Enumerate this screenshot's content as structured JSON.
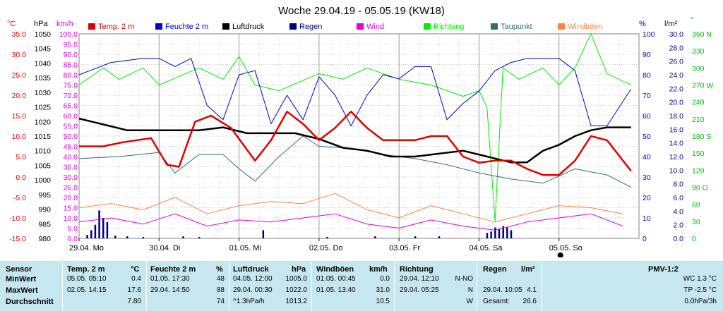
{
  "chart_data": {
    "type": "line",
    "title": "Woche 29.04.19 - 05.05.19 (KW18)",
    "axis_units": {
      "temp": "°C",
      "pressure": "hPa",
      "wind_kmh": "km/h",
      "humidity": "%",
      "rain": "l/m²",
      "direction": "°"
    },
    "axes": {
      "temp": {
        "min": -15,
        "max": 35,
        "ticks": [
          "35.0",
          "30.0",
          "25.0",
          "20.0",
          "15.0",
          "10.0",
          "5.0",
          "0.0",
          "-5.0",
          "-10.0",
          "-15.0"
        ]
      },
      "pressure": {
        "min": 980,
        "max": 1050,
        "ticks": [
          "1050",
          "1045",
          "1040",
          "1035",
          "1030",
          "1025",
          "1020",
          "1015",
          "1010",
          "1005",
          "1000",
          "995",
          "990",
          "985",
          "980"
        ]
      },
      "wind_kmh": {
        "min": 0,
        "max": 100,
        "ticks": [
          "100.0",
          "95.0",
          "90.0",
          "85.0",
          "80.0",
          "75.0",
          "70.0",
          "65.0",
          "60.0",
          "55.0",
          "50.0",
          "45.0",
          "40.0",
          "35.0",
          "30.0",
          "25.0",
          "20.0",
          "15.0",
          "10.0",
          "5.0",
          "0.0"
        ]
      },
      "humidity": {
        "min": 0,
        "max": 100,
        "ticks": [
          "100",
          "90",
          "80",
          "70",
          "60",
          "50",
          "40",
          "30",
          "20",
          "10",
          "0"
        ]
      },
      "rain": {
        "min": 0,
        "max": 30,
        "ticks": [
          "30.0",
          "28.0",
          "26.0",
          "24.0",
          "22.0",
          "20.0",
          "18.0",
          "16.0",
          "14.0",
          "12.0",
          "10.0",
          "8.0",
          "6.0",
          "4.0",
          "2.0",
          "0.0"
        ]
      },
      "direction": {
        "min": 0,
        "max": 360,
        "ticks": [
          "360 N",
          "330",
          "300",
          "270 W",
          "240",
          "210",
          "180 S",
          "150",
          "120",
          "90 O",
          "60",
          "30",
          "0"
        ]
      }
    },
    "x_labels": [
      "29.04.  Mo",
      "30.04.  Di",
      "01.05.  Mi",
      "02.05.  Do",
      "03.05.  Fr",
      "04.05.  Sa",
      "05.05.  So"
    ],
    "grid": true,
    "legend_position": "top",
    "series": [
      {
        "name": "Temp. 2 m",
        "color": "#e00000",
        "axis": "temp",
        "x_days": [
          0,
          0.3,
          0.55,
          0.9,
          1.1,
          1.25,
          1.45,
          1.65,
          1.9,
          2.2,
          2.4,
          2.6,
          2.8,
          3.0,
          3.2,
          3.4,
          3.6,
          3.8,
          4.0,
          4.2,
          4.4,
          4.6,
          4.8,
          5.0,
          5.2,
          5.4,
          5.6,
          5.8,
          6.0,
          6.2,
          6.4,
          6.6,
          6.9
        ],
        "values": [
          7.5,
          7.5,
          8.5,
          9.5,
          3.0,
          2.5,
          13.5,
          15.0,
          12.0,
          4.0,
          9.0,
          16.0,
          13.0,
          9.0,
          12.0,
          16.0,
          12.0,
          9.0,
          9.0,
          9.0,
          10.0,
          10.0,
          5.0,
          3.5,
          4.0,
          4.0,
          2.0,
          0.5,
          0.5,
          4.0,
          10.0,
          9.0,
          1.5
        ]
      },
      {
        "name": "Feuchte 2 m",
        "color": "#0000d0",
        "axis": "humidity",
        "x_days": [
          0,
          0.4,
          0.8,
          1.0,
          1.2,
          1.4,
          1.6,
          1.8,
          2.0,
          2.2,
          2.4,
          2.6,
          2.8,
          3.0,
          3.2,
          3.4,
          3.6,
          3.8,
          4.0,
          4.2,
          4.4,
          4.6,
          4.8,
          5.0,
          5.2,
          5.4,
          5.6,
          5.8,
          6.0,
          6.2,
          6.4,
          6.6,
          6.9
        ],
        "values": [
          80,
          86,
          88,
          88,
          84,
          88,
          65,
          58,
          80,
          82,
          56,
          70,
          58,
          79,
          70,
          55,
          70,
          80,
          78,
          84,
          84,
          58,
          66,
          72,
          82,
          86,
          88,
          88,
          88,
          82,
          55,
          55,
          73
        ]
      },
      {
        "name": "Luftdruck",
        "color": "#000000",
        "axis": "pressure",
        "x_days": [
          0,
          0.3,
          0.6,
          0.9,
          1.2,
          1.5,
          1.8,
          2.1,
          2.4,
          2.7,
          3.0,
          3.3,
          3.6,
          3.9,
          4.2,
          4.5,
          4.8,
          5.1,
          5.4,
          5.6,
          5.8,
          6.0,
          6.2,
          6.4,
          6.6,
          6.9
        ],
        "values": [
          1021,
          1019,
          1017,
          1017,
          1017,
          1017,
          1018,
          1016,
          1016,
          1016,
          1014,
          1011,
          1010,
          1008,
          1008,
          1009,
          1010,
          1008,
          1006,
          1006,
          1010,
          1012,
          1015,
          1017,
          1018,
          1018
        ]
      },
      {
        "name": "Regen",
        "color": "#000080",
        "axis": "rain",
        "x_days": [
          0.1,
          0.15,
          0.2,
          0.25,
          0.3,
          0.35,
          0.45,
          0.6,
          0.8,
          1.3,
          1.5,
          2.3,
          3.1,
          3.7,
          4.2,
          4.5,
          5.1,
          5.15,
          5.2,
          5.25,
          5.3,
          5.35,
          5.4
        ],
        "values": [
          0.5,
          1.2,
          2.0,
          4.1,
          3.0,
          2.4,
          0.4,
          0.3,
          0.2,
          0.3,
          0.2,
          1.2,
          0.2,
          0.3,
          0.3,
          0.3,
          0.8,
          1.0,
          1.6,
          1.4,
          1.8,
          1.6,
          1.2
        ]
      },
      {
        "name": "Wind",
        "color": "#e000e0",
        "axis": "wind_kmh",
        "x_days": [
          0,
          0.4,
          0.8,
          1.2,
          1.6,
          2.0,
          2.4,
          2.8,
          3.2,
          3.6,
          4.0,
          4.4,
          4.8,
          5.2,
          5.6,
          6.0,
          6.4,
          6.8
        ],
        "values": [
          8,
          10,
          7,
          12,
          6,
          9,
          8,
          10,
          12,
          7,
          5,
          9,
          6,
          4,
          8,
          10,
          12,
          6
        ]
      },
      {
        "name": "Richtung",
        "color": "#00ee00",
        "axis": "direction",
        "x_days": [
          0,
          0.3,
          0.5,
          0.8,
          1.0,
          1.5,
          1.8,
          2.0,
          2.2,
          2.5,
          3.0,
          3.3,
          3.6,
          4.0,
          4.4,
          4.8,
          5.0,
          5.1,
          5.2,
          5.3,
          5.5,
          5.8,
          6.0,
          6.2,
          6.4,
          6.6,
          6.9
        ],
        "values": [
          270,
          300,
          280,
          300,
          270,
          300,
          280,
          320,
          270,
          260,
          290,
          280,
          300,
          280,
          270,
          250,
          260,
          230,
          30,
          300,
          280,
          300,
          270,
          300,
          360,
          290,
          270
        ]
      },
      {
        "name": "Taupunkt",
        "color": "#307070",
        "axis": "temp",
        "x_days": [
          0,
          0.5,
          1.0,
          1.2,
          1.5,
          1.8,
          2.0,
          2.2,
          2.5,
          2.8,
          3.0,
          3.4,
          3.8,
          4.2,
          4.6,
          5.0,
          5.4,
          5.8,
          6.2,
          6.6,
          6.9
        ],
        "values": [
          4.5,
          5.0,
          6.0,
          1.0,
          5.5,
          5.5,
          2.0,
          -1.0,
          5.0,
          10.0,
          7.5,
          7.0,
          5.5,
          4.5,
          3.0,
          1.0,
          -0.5,
          -1.5,
          2.0,
          0.5,
          -2.5
        ]
      },
      {
        "name": "Windböen",
        "color": "#ff8040",
        "axis": "wind_kmh",
        "x_days": [
          0,
          0.4,
          0.8,
          1.2,
          1.6,
          2.0,
          2.4,
          2.8,
          3.2,
          3.6,
          4.0,
          4.4,
          4.8,
          5.2,
          5.6,
          6.0,
          6.4,
          6.8
        ],
        "values": [
          15,
          17,
          14,
          20,
          12,
          16,
          18,
          17,
          22,
          14,
          10,
          16,
          12,
          8,
          12,
          16,
          15,
          12
        ]
      }
    ]
  },
  "stats": {
    "headers": {
      "sensor": "Sensor",
      "temp": "Temp. 2 m",
      "temp_unit": "°C",
      "hum": "Feuchte  2 m",
      "hum_unit": "%",
      "press": "Luftdruck",
      "press_unit": "hPa",
      "gust": "Windböen",
      "gust_unit": "km/h",
      "dir": "Richtung",
      "rain": "Regen",
      "rain_unit": "l/m²",
      "pmv": "PMV-1:2"
    },
    "rows": [
      {
        "label": "MinWert",
        "temp_t": "05.05.  05:10",
        "temp_v": "0.4",
        "hum_t": "01.05.  17:30",
        "hum_v": "48",
        "press_t": "04.05.  12:00",
        "press_v": "1005.0",
        "gust_t": "01.05.  00:45",
        "gust_v": "0.0",
        "dir_t": "29.04.  12:10",
        "dir_v": "N-NO",
        "rain_t": "",
        "rain_v": "",
        "pmv": "WC 1.3 °C"
      },
      {
        "label": "MaxWert",
        "temp_t": "02.05.  14:15",
        "temp_v": "17.6",
        "hum_t": "29.04.  14:50",
        "hum_v": "88",
        "press_t": "29.04.  00:30",
        "press_v": "1022.0",
        "gust_t": "01.05.  13:40",
        "gust_v": "31.0",
        "dir_t": "29.04.  05:25",
        "dir_v": "N",
        "rain_t": "29.04.  10:05",
        "rain_v": "4.1",
        "pmv": "TP -2.5 °C"
      },
      {
        "label": "Durchschnitt",
        "temp_t": "",
        "temp_v": "7.80",
        "hum_t": "",
        "hum_v": "74",
        "press_t": "^1.3hPa/h",
        "press_v": "1013.2",
        "gust_t": "",
        "gust_v": "10.5",
        "dir_t": "",
        "dir_v": "W",
        "rain_t": "Gesamt:",
        "rain_v": "26.6",
        "pmv": "0.0hPa/3h"
      }
    ]
  }
}
